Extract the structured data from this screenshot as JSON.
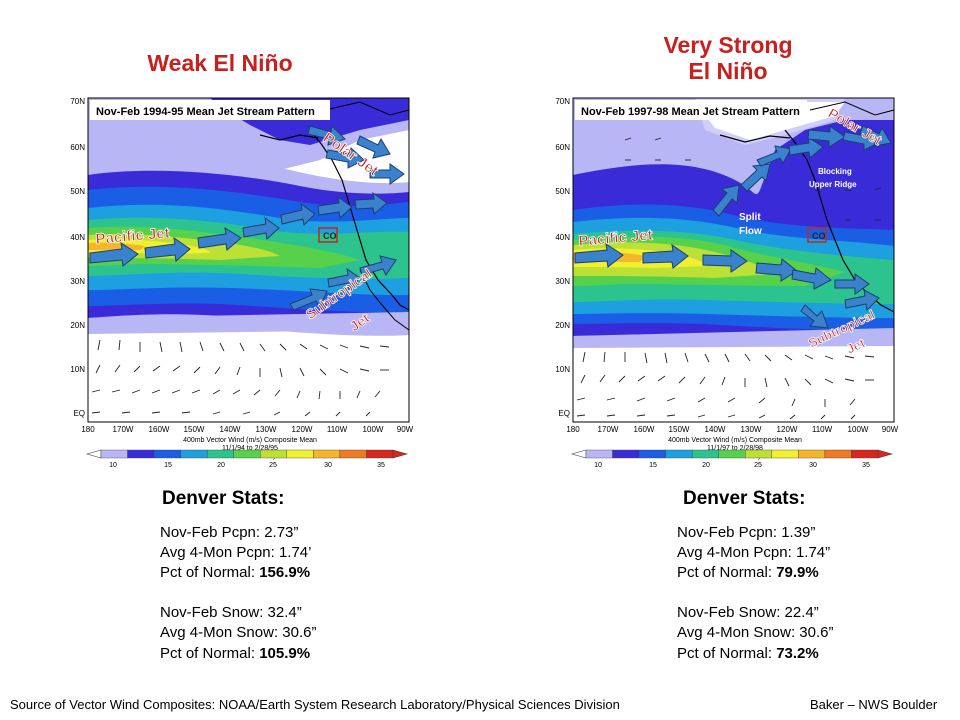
{
  "titles": {
    "left": "Weak El Niño",
    "right_line1": "Very Strong",
    "right_line2": "El Niño"
  },
  "left_map": {
    "title": "Nov-Feb 1994-95 Mean Jet Stream Pattern",
    "labels": {
      "pacific": "Pacific Jet",
      "polar": "Polar Jet",
      "sub1": "Subtropical",
      "sub2": "Jet",
      "co": "CO"
    },
    "caption1": "400mb Vector Wind (m/s) Composite Mean",
    "caption2": "11/1/94 to 2/28/95",
    "caption3": "NCEP/NCAR Reanalysis"
  },
  "right_map": {
    "title": "Nov-Feb 1997-98 Mean Jet Stream Pattern",
    "labels": {
      "pacific": "Pacific Jet",
      "polar": "Polar Jet",
      "sub1": "Subtropical",
      "sub2": "Jet",
      "co": "CO",
      "split1": "Split",
      "split2": "Flow",
      "block1": "Blocking",
      "block2": "Upper Ridge"
    },
    "caption1": "400mb Vector Wind (m/s) Composite Mean",
    "caption2": "11/1/97 to 2/28/98",
    "caption3": "NCEP/NCAR Reanalysis"
  },
  "axes": {
    "lat_labels": [
      "70N",
      "60N",
      "50N",
      "40N",
      "30N",
      "20N",
      "10N",
      "EQ"
    ],
    "lon_labels": [
      "180",
      "170W",
      "160W",
      "150W",
      "140W",
      "130W",
      "120W",
      "110W",
      "100W",
      "90W"
    ]
  },
  "colorbar": {
    "ticks": [
      "10",
      "15",
      "20",
      "25",
      "30",
      "35"
    ],
    "colors": [
      "#b9b6f6",
      "#3a2bd9",
      "#1b5ee6",
      "#1e9fdf",
      "#2cc38e",
      "#57d04c",
      "#bce036",
      "#f2ef2e",
      "#f4b62a",
      "#ef7a24",
      "#d6261f"
    ]
  },
  "colors": {
    "title_red": "#c8201f",
    "arrow_blue": "#3a82cc",
    "label_red": "#c0281e"
  },
  "stats": {
    "left": {
      "heading": "Denver Stats:",
      "pcpn": "Nov-Feb Pcpn: 2.73”",
      "avg_pcpn": "Avg 4-Mon Pcpn: 1.74’",
      "pct_pcpn_label": "Pct of Normal: ",
      "pct_pcpn_value": "156.9%",
      "snow": "Nov-Feb Snow: 32.4”",
      "avg_snow": "Avg 4-Mon Snow: 30.6”",
      "pct_snow_label": "Pct of Normal: ",
      "pct_snow_value": "105.9%"
    },
    "right": {
      "heading": "Denver Stats:",
      "pcpn": "Nov-Feb Pcpn: 1.39”",
      "avg_pcpn": "Avg 4-Mon Pcpn: 1.74”",
      "pct_pcpn_label": "Pct of Normal: ",
      "pct_pcpn_value": "79.9%",
      "snow": "Nov-Feb Snow: 22.4”",
      "avg_snow": "Avg 4-Mon Snow: 30.6”",
      "pct_snow_label": "Pct of Normal: ",
      "pct_snow_value": "73.2%"
    }
  },
  "footer": {
    "source": "Source of Vector Wind Composites: NOAA/Earth System Research Laboratory/Physical Sciences Division",
    "credit": "Baker – NWS Boulder"
  }
}
